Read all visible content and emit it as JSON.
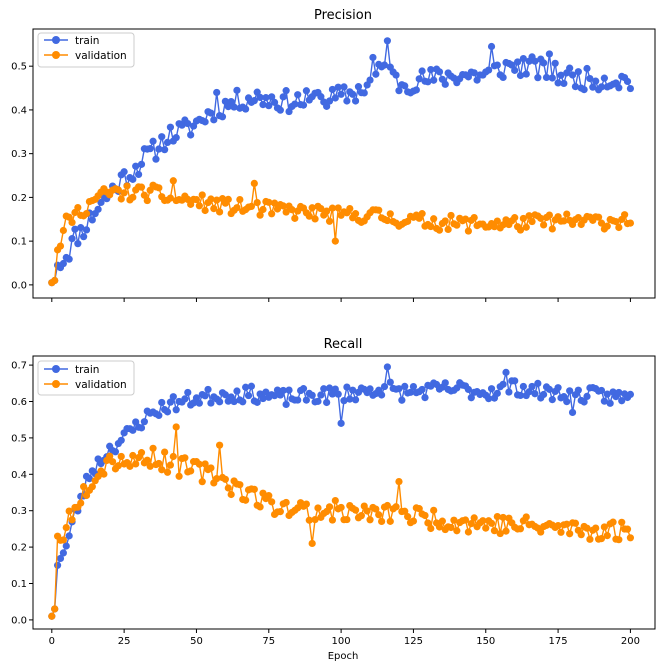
{
  "chart_data": [
    {
      "type": "line",
      "title": "Precision",
      "xlabel": "",
      "ylabel": "",
      "xlim": [
        -6.5,
        208.5
      ],
      "ylim": [
        -0.03,
        0.585
      ],
      "xticks": [
        0,
        25,
        50,
        75,
        100,
        125,
        150,
        175,
        200
      ],
      "yticks": [
        0.0,
        0.1,
        0.2,
        0.3,
        0.4,
        0.5
      ],
      "ytick_labels": [
        "0.0",
        "0.1",
        "0.2",
        "0.3",
        "0.4",
        "0.5"
      ],
      "show_xtick_labels": false,
      "grid": false,
      "legend": "top-left",
      "series": [
        {
          "name": "train",
          "color": "#4169e1",
          "anchors": [
            [
              0,
              0.005
            ],
            [
              1,
              0.01
            ],
            [
              2,
              0.045
            ],
            [
              4,
              0.06
            ],
            [
              6,
              0.08
            ],
            [
              8,
              0.11
            ],
            [
              10,
              0.12
            ],
            [
              13,
              0.15
            ],
            [
              16,
              0.18
            ],
            [
              20,
              0.21
            ],
            [
              24,
              0.24
            ],
            [
              28,
              0.26
            ],
            [
              32,
              0.29
            ],
            [
              36,
              0.31
            ],
            [
              40,
              0.34
            ],
            [
              44,
              0.35
            ],
            [
              48,
              0.36
            ],
            [
              52,
              0.38
            ],
            [
              56,
              0.4
            ],
            [
              60,
              0.41
            ],
            [
              64,
              0.42
            ],
            [
              70,
              0.43
            ],
            [
              80,
              0.42
            ],
            [
              90,
              0.42
            ],
            [
              100,
              0.43
            ],
            [
              105,
              0.44
            ],
            [
              110,
              0.46
            ],
            [
              115,
              0.5
            ],
            [
              120,
              0.46
            ],
            [
              130,
              0.47
            ],
            [
              140,
              0.48
            ],
            [
              150,
              0.48
            ],
            [
              158,
              0.5
            ],
            [
              165,
              0.5
            ],
            [
              175,
              0.48
            ],
            [
              185,
              0.47
            ],
            [
              195,
              0.47
            ],
            [
              200,
              0.465
            ]
          ],
          "noise": 0.025,
          "spikes": [
            [
              116,
              0.558
            ],
            [
              111,
              0.52
            ],
            [
              57,
              0.44
            ],
            [
              92,
              0.44
            ],
            [
              152,
              0.545
            ],
            [
              172,
              0.528
            ]
          ]
        },
        {
          "name": "validation",
          "color": "#ff8c00",
          "anchors": [
            [
              0,
              0.005
            ],
            [
              1,
              0.01
            ],
            [
              2,
              0.08
            ],
            [
              3,
              0.095
            ],
            [
              5,
              0.14
            ],
            [
              8,
              0.16
            ],
            [
              12,
              0.18
            ],
            [
              16,
              0.2
            ],
            [
              20,
              0.21
            ],
            [
              25,
              0.21
            ],
            [
              30,
              0.21
            ],
            [
              35,
              0.21
            ],
            [
              40,
              0.2
            ],
            [
              50,
              0.19
            ],
            [
              60,
              0.18
            ],
            [
              70,
              0.175
            ],
            [
              80,
              0.17
            ],
            [
              90,
              0.165
            ],
            [
              100,
              0.16
            ],
            [
              110,
              0.16
            ],
            [
              120,
              0.15
            ],
            [
              130,
              0.145
            ],
            [
              140,
              0.14
            ],
            [
              150,
              0.14
            ],
            [
              160,
              0.14
            ],
            [
              170,
              0.145
            ],
            [
              180,
              0.145
            ],
            [
              190,
              0.145
            ],
            [
              200,
              0.15
            ]
          ],
          "noise": 0.018,
          "spikes": [
            [
              42,
              0.238
            ],
            [
              70,
              0.232
            ],
            [
              98,
              0.1
            ]
          ]
        }
      ]
    },
    {
      "type": "line",
      "title": "Recall",
      "xlabel": "Epoch",
      "ylabel": "",
      "xlim": [
        -6.5,
        208.5
      ],
      "ylim": [
        -0.025,
        0.725
      ],
      "xticks": [
        0,
        25,
        50,
        75,
        100,
        125,
        150,
        175,
        200
      ],
      "xtick_labels": [
        "0",
        "25",
        "50",
        "75",
        "100",
        "125",
        "150",
        "175",
        "200"
      ],
      "yticks": [
        0.0,
        0.1,
        0.2,
        0.3,
        0.4,
        0.5,
        0.6,
        0.7
      ],
      "ytick_labels": [
        "0.0",
        "0.1",
        "0.2",
        "0.3",
        "0.4",
        "0.5",
        "0.6",
        "0.7"
      ],
      "show_xtick_labels": true,
      "grid": false,
      "legend": "top-left",
      "series": [
        {
          "name": "train",
          "color": "#4169e1",
          "anchors": [
            [
              0,
              0.01
            ],
            [
              1,
              0.03
            ],
            [
              2,
              0.15
            ],
            [
              3,
              0.18
            ],
            [
              5,
              0.2
            ],
            [
              8,
              0.29
            ],
            [
              10,
              0.33
            ],
            [
              13,
              0.4
            ],
            [
              16,
              0.43
            ],
            [
              20,
              0.47
            ],
            [
              25,
              0.5
            ],
            [
              30,
              0.54
            ],
            [
              35,
              0.57
            ],
            [
              40,
              0.59
            ],
            [
              45,
              0.6
            ],
            [
              50,
              0.61
            ],
            [
              60,
              0.62
            ],
            [
              70,
              0.62
            ],
            [
              80,
              0.61
            ],
            [
              90,
              0.615
            ],
            [
              100,
              0.62
            ],
            [
              110,
              0.63
            ],
            [
              115,
              0.64
            ],
            [
              120,
              0.625
            ],
            [
              130,
              0.63
            ],
            [
              140,
              0.635
            ],
            [
              150,
              0.625
            ],
            [
              160,
              0.64
            ],
            [
              170,
              0.625
            ],
            [
              180,
              0.62
            ],
            [
              190,
              0.615
            ],
            [
              200,
              0.61
            ]
          ],
          "noise": 0.022,
          "spikes": [
            [
              116,
              0.695
            ],
            [
              100,
              0.54
            ],
            [
              180,
              0.57
            ],
            [
              157,
              0.68
            ]
          ]
        },
        {
          "name": "validation",
          "color": "#ff8c00",
          "anchors": [
            [
              0,
              0.01
            ],
            [
              1,
              0.03
            ],
            [
              2,
              0.23
            ],
            [
              4,
              0.24
            ],
            [
              6,
              0.28
            ],
            [
              8,
              0.32
            ],
            [
              10,
              0.34
            ],
            [
              13,
              0.38
            ],
            [
              16,
              0.41
            ],
            [
              20,
              0.44
            ],
            [
              25,
              0.44
            ],
            [
              30,
              0.44
            ],
            [
              35,
              0.45
            ],
            [
              40,
              0.43
            ],
            [
              45,
              0.42
            ],
            [
              50,
              0.41
            ],
            [
              55,
              0.4
            ],
            [
              60,
              0.38
            ],
            [
              65,
              0.36
            ],
            [
              70,
              0.34
            ],
            [
              75,
              0.32
            ],
            [
              80,
              0.31
            ],
            [
              90,
              0.3
            ],
            [
              100,
              0.3
            ],
            [
              110,
              0.29
            ],
            [
              120,
              0.29
            ],
            [
              130,
              0.28
            ],
            [
              140,
              0.27
            ],
            [
              150,
              0.265
            ],
            [
              160,
              0.26
            ],
            [
              170,
              0.255
            ],
            [
              180,
              0.25
            ],
            [
              190,
              0.245
            ],
            [
              200,
              0.245
            ]
          ],
          "noise": 0.028,
          "spikes": [
            [
              43,
              0.53
            ],
            [
              58,
              0.48
            ],
            [
              120,
              0.38
            ],
            [
              90,
              0.21
            ]
          ]
        }
      ]
    }
  ]
}
